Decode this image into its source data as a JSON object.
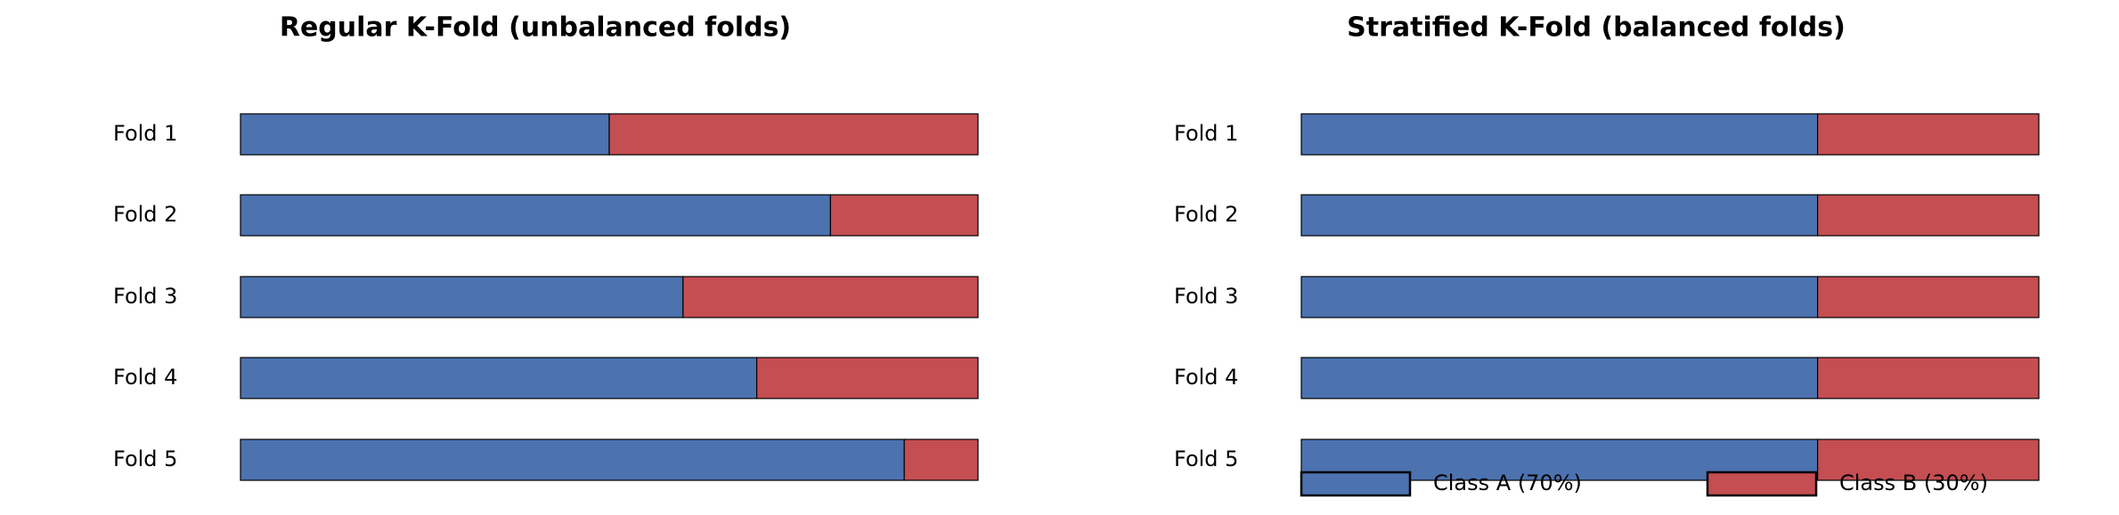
{
  "chart_data": [
    {
      "type": "stacked-barh",
      "title": "Regular K-Fold (unbalanced folds)",
      "categories": [
        "Fold 1",
        "Fold 2",
        "Fold 3",
        "Fold 4",
        "Fold 5"
      ],
      "series": [
        {
          "color": "#4c72b0",
          "values": [
            50,
            80,
            60,
            70,
            90
          ]
        },
        {
          "color": "#c44e52",
          "values": [
            50,
            20,
            40,
            30,
            10
          ]
        }
      ],
      "xlim": [
        0,
        100
      ]
    },
    {
      "type": "stacked-barh",
      "title": "Stratified K-Fold (balanced folds)",
      "categories": [
        "Fold 1",
        "Fold 2",
        "Fold 3",
        "Fold 4",
        "Fold 5"
      ],
      "series": [
        {
          "name": "Class A (70%)",
          "color": "#4c72b0",
          "values": [
            70,
            70,
            70,
            70,
            70
          ]
        },
        {
          "name": "Class B (30%)",
          "color": "#c44e52",
          "values": [
            30,
            30,
            30,
            30,
            30
          ]
        }
      ],
      "xlim": [
        0,
        100
      ],
      "legend": "lower center"
    }
  ]
}
